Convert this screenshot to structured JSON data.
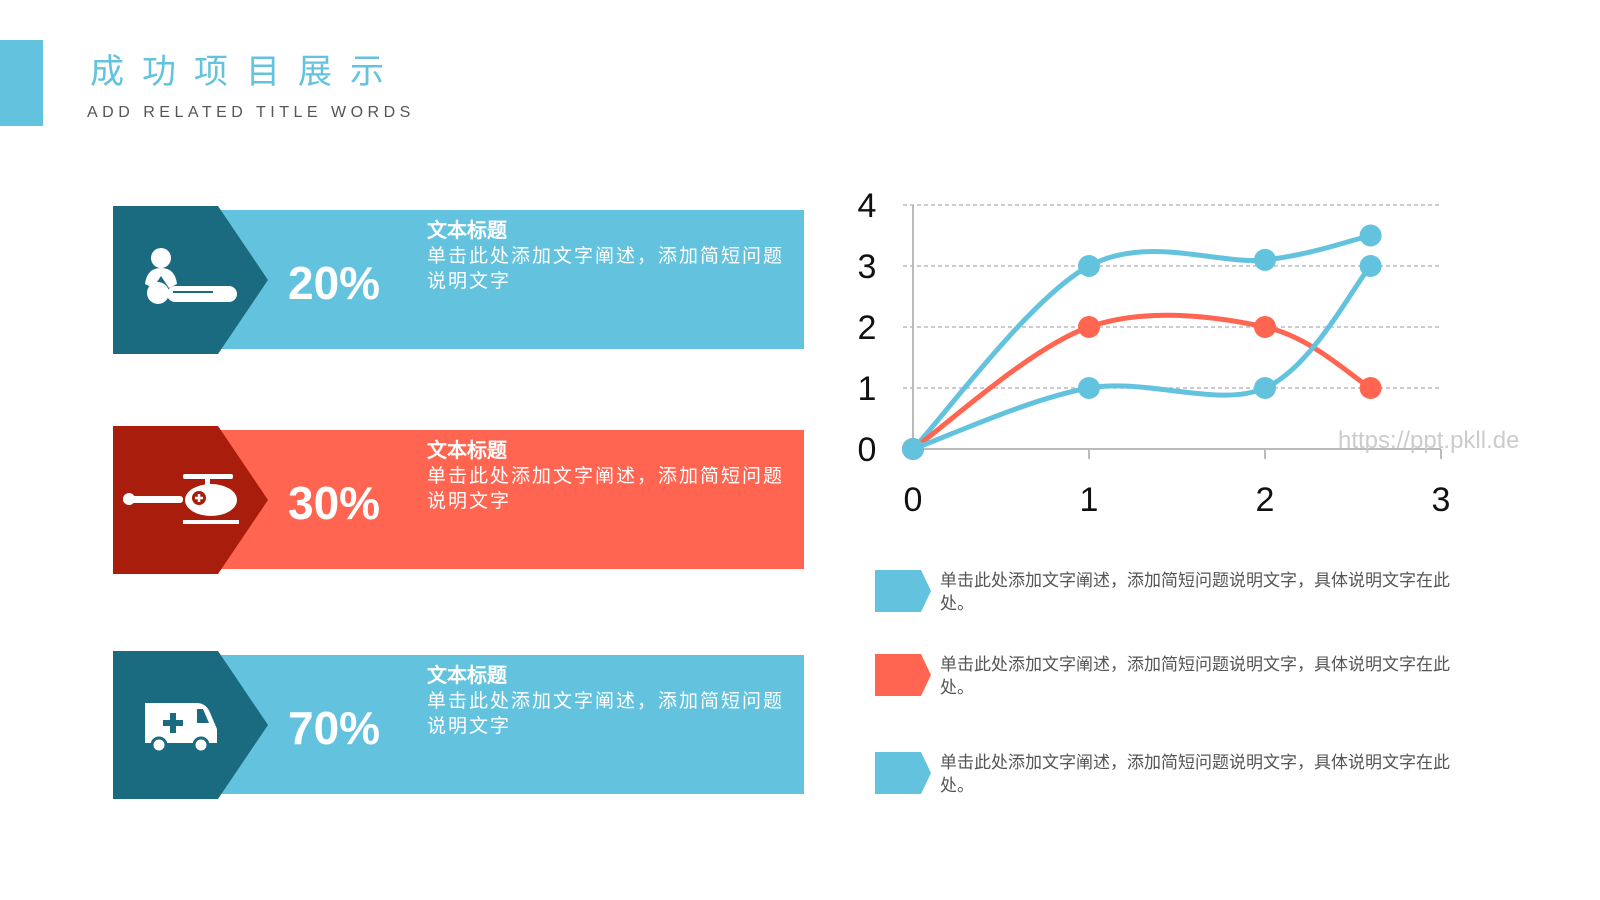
{
  "header": {
    "title": "成功项目展示",
    "subtitle": "ADD RELATED TITLE WORDS",
    "accent_color": "#63C3DE"
  },
  "cards": [
    {
      "percent": "20%",
      "title": "文本标题",
      "desc": "单击此处添加文字阐述，添加简短问题说明文字",
      "icon": "cpr-person-icon",
      "light": "#63C3DE",
      "dark": "#1B6B80"
    },
    {
      "percent": "30%",
      "title": "文本标题",
      "desc": "单击此处添加文字阐述，添加简短问题说明文字",
      "icon": "helicopter-icon",
      "light": "#FF6550",
      "dark": "#A81D0B"
    },
    {
      "percent": "70%",
      "title": "文本标题",
      "desc": "单击此处添加文字阐述，添加简短问题说明文字",
      "icon": "ambulance-icon",
      "light": "#63C3DE",
      "dark": "#1B6B80"
    }
  ],
  "legend": [
    {
      "text": "单击此处添加文字阐述，添加简短问题说明文字，具体说明文字在此处。",
      "color": "#63C3DE"
    },
    {
      "text": "单击此处添加文字阐述，添加简短问题说明文字，具体说明文字在此处。",
      "color": "#FF6550"
    },
    {
      "text": "单击此处添加文字阐述，添加简短问题说明文字，具体说明文字在此处。",
      "color": "#63C3DE"
    }
  ],
  "watermark": "https://ppt.pkll.de",
  "chart_data": {
    "type": "line",
    "smooth": true,
    "grid": "horizontal dashed",
    "xlim": [
      0,
      3
    ],
    "ylim": [
      0,
      4
    ],
    "xticks": [
      "0",
      "1",
      "2",
      "3"
    ],
    "yticks": [
      "0",
      "1",
      "2",
      "3",
      "4"
    ],
    "series": [
      {
        "color": "#63C3DE",
        "points": [
          [
            0,
            0
          ],
          [
            1,
            3
          ],
          [
            2,
            3.1
          ],
          [
            2.6,
            3.5
          ]
        ]
      },
      {
        "color": "#FF6550",
        "points": [
          [
            0,
            0
          ],
          [
            1,
            2
          ],
          [
            2,
            2
          ],
          [
            2.6,
            1
          ]
        ]
      },
      {
        "color": "#63C3DE",
        "points": [
          [
            0,
            0
          ],
          [
            1,
            1
          ],
          [
            2,
            1
          ],
          [
            2.6,
            3
          ]
        ]
      }
    ]
  }
}
